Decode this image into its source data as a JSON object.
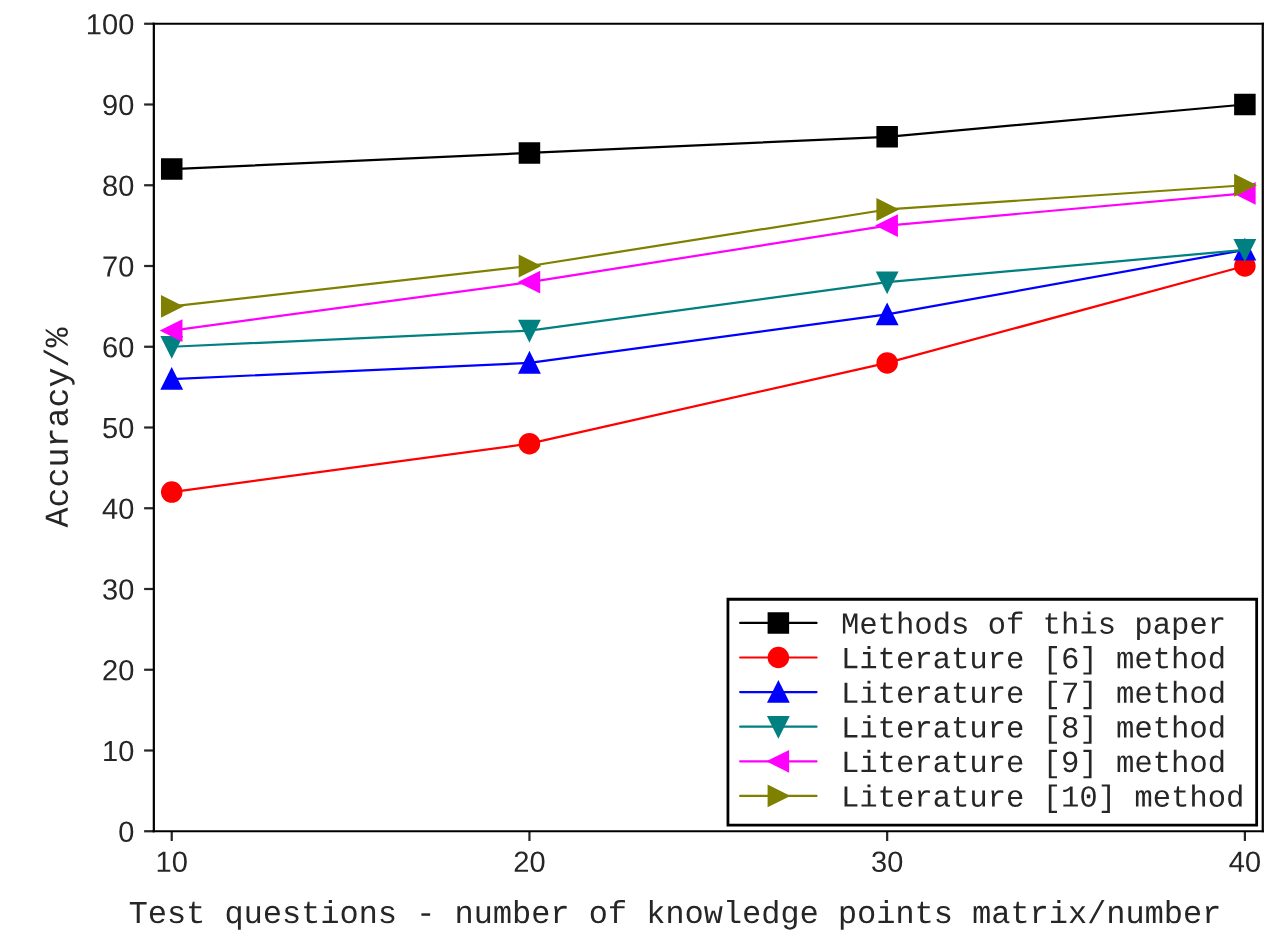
{
  "chart_data": {
    "type": "line",
    "xlabel": "Test questions - number of knowledge points matrix/number",
    "ylabel": "Accuracy/%",
    "x": [
      10,
      20,
      30,
      40
    ],
    "xlim": [
      9.5,
      40.5
    ],
    "xticks": [
      10,
      20,
      30,
      40
    ],
    "ylim": [
      0,
      100
    ],
    "yticks": [
      0,
      10,
      20,
      30,
      40,
      50,
      60,
      70,
      80,
      90,
      100
    ],
    "grid": false,
    "legend": "bottom right",
    "line_style": "solid",
    "series": [
      {
        "name": "Methods of this paper",
        "color": "#000000",
        "marker": "square",
        "values": [
          82,
          84,
          86,
          90
        ]
      },
      {
        "name": "Literature [6] method",
        "color": "#ff0000",
        "marker": "circle",
        "values": [
          42,
          48,
          58,
          70
        ]
      },
      {
        "name": "Literature [7] method",
        "color": "#0000ff",
        "marker": "triangle",
        "values": [
          56,
          58,
          64,
          72
        ]
      },
      {
        "name": "Literature [8] method",
        "color": "#008080",
        "marker": "triangle_down",
        "values": [
          60,
          62,
          68,
          72
        ]
      },
      {
        "name": "Literature [9] method",
        "color": "#ff00ff",
        "marker": "triangle_left",
        "values": [
          62,
          68,
          75,
          79
        ]
      },
      {
        "name": "Literature [10] method",
        "color": "#808000",
        "marker": "triangle_right",
        "values": [
          65,
          70,
          77,
          80
        ]
      }
    ]
  }
}
